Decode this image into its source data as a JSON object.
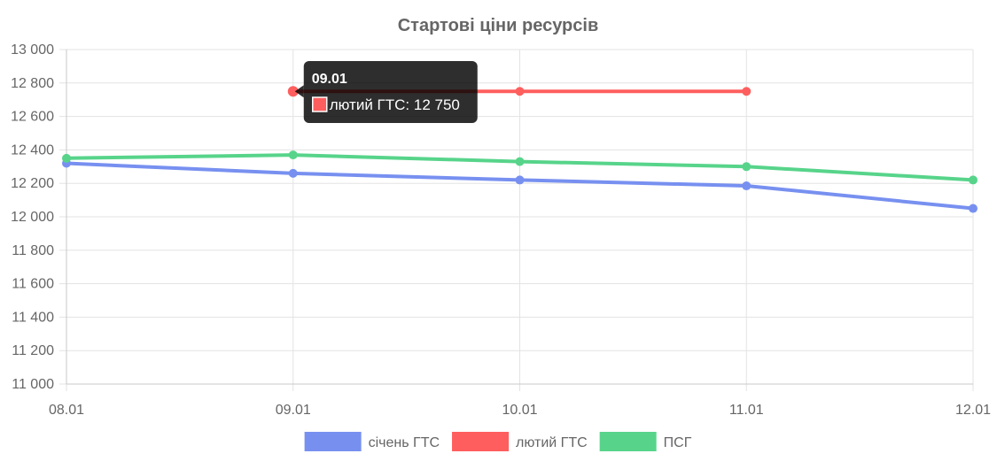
{
  "chart_data": {
    "type": "line",
    "title": "Стартові ціни ресурсів",
    "categories": [
      "08.01",
      "09.01",
      "10.01",
      "11.01",
      "12.01"
    ],
    "ylim": [
      11000,
      13000
    ],
    "yticks": [
      11000,
      11200,
      11400,
      11600,
      11800,
      12000,
      12200,
      12400,
      12600,
      12800,
      13000
    ],
    "grid": true,
    "legend_position": "bottom",
    "series": [
      {
        "name": "січень ГТС",
        "color": "#7790f0",
        "values": [
          12320,
          12260,
          12220,
          12185,
          12050
        ]
      },
      {
        "name": "лютий ГТС",
        "color": "#ff5e5e",
        "values": [
          null,
          12750,
          12750,
          12750,
          null
        ]
      },
      {
        "name": "ПСГ",
        "color": "#57d48a",
        "values": [
          12350,
          12370,
          12330,
          12300,
          12220
        ]
      }
    ],
    "tooltip": {
      "title": "09.01",
      "label": "лютий ГТС: 12 750",
      "series_index": 1,
      "point_index": 1
    }
  }
}
